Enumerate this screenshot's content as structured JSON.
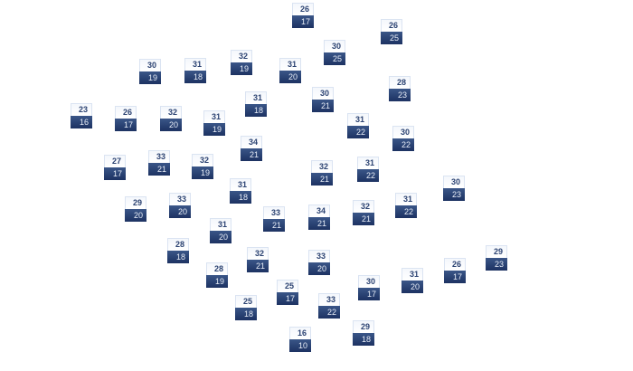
{
  "stations": [
    {
      "high": "26",
      "low": "17"
    },
    {
      "high": "26",
      "low": "25"
    },
    {
      "high": "30",
      "low": "25"
    },
    {
      "high": "30",
      "low": "19"
    },
    {
      "high": "31",
      "low": "18"
    },
    {
      "high": "32",
      "low": "19"
    },
    {
      "high": "31",
      "low": "20"
    },
    {
      "high": "28",
      "low": "23"
    },
    {
      "high": "31",
      "low": "18"
    },
    {
      "high": "30",
      "low": "21"
    },
    {
      "high": "23",
      "low": "16"
    },
    {
      "high": "26",
      "low": "17"
    },
    {
      "high": "32",
      "low": "20"
    },
    {
      "high": "31",
      "low": "19"
    },
    {
      "high": "31",
      "low": "22"
    },
    {
      "high": "30",
      "low": "22"
    },
    {
      "high": "34",
      "low": "21"
    },
    {
      "high": "27",
      "low": "17"
    },
    {
      "high": "33",
      "low": "21"
    },
    {
      "high": "32",
      "low": "19"
    },
    {
      "high": "32",
      "low": "21"
    },
    {
      "high": "31",
      "low": "22"
    },
    {
      "high": "31",
      "low": "18"
    },
    {
      "high": "30",
      "low": "23"
    },
    {
      "high": "29",
      "low": "20"
    },
    {
      "high": "33",
      "low": "20"
    },
    {
      "high": "33",
      "low": "21"
    },
    {
      "high": "34",
      "low": "21"
    },
    {
      "high": "32",
      "low": "21"
    },
    {
      "high": "31",
      "low": "22"
    },
    {
      "high": "31",
      "low": "20"
    },
    {
      "high": "28",
      "low": "18"
    },
    {
      "high": "32",
      "low": "21"
    },
    {
      "high": "33",
      "low": "20"
    },
    {
      "high": "29",
      "low": "23"
    },
    {
      "high": "26",
      "low": "17"
    },
    {
      "high": "31",
      "low": "20"
    },
    {
      "high": "28",
      "low": "19"
    },
    {
      "high": "30",
      "low": "17"
    },
    {
      "high": "25",
      "low": "17"
    },
    {
      "high": "33",
      "low": "22"
    },
    {
      "high": "25",
      "low": "18"
    },
    {
      "high": "16",
      "low": "10"
    },
    {
      "high": "29",
      "low": "18"
    }
  ],
  "colors": {
    "high_text": "#2c4372",
    "low_bg": "#1d3262",
    "low_text": "#e8eef8"
  }
}
